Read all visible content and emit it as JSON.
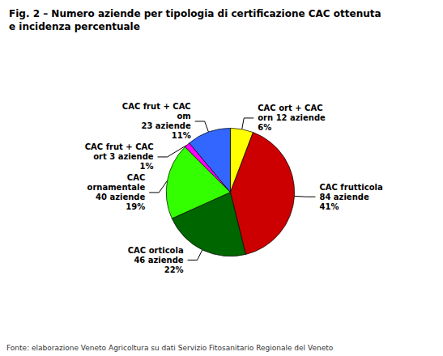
{
  "chart_data": {
    "type": "pie",
    "title": "Fig. 2 – Numero aziende per tipologia di certificazione CAC ottenuta",
    "subtitle": "e incidenza percentuale",
    "annotations": [
      "Fonte: elaborazione Veneto Agricoltura su dati Servizio Fitosanitario Regionale del Veneto"
    ],
    "categories": [
      "CAC ort + CAC\norn 12 aziende\n6%",
      "CAC frutticola\n84 aziende\n41%",
      "CAC orticola\n46 aziende\n22%",
      "CAC\nornamentale\n40 aziende\n19%",
      "CAC frut + CAC\nort 3 aziende\n1%",
      "CAC frut + CAC\nom\n23 aziende\n11%"
    ],
    "values": [
      12,
      84,
      46,
      40,
      3,
      23
    ],
    "colors": [
      "#ffff00",
      "#cc0000",
      "#006600",
      "#33ff00",
      "#ff00ff",
      "#3366ff"
    ],
    "legend": false
  }
}
